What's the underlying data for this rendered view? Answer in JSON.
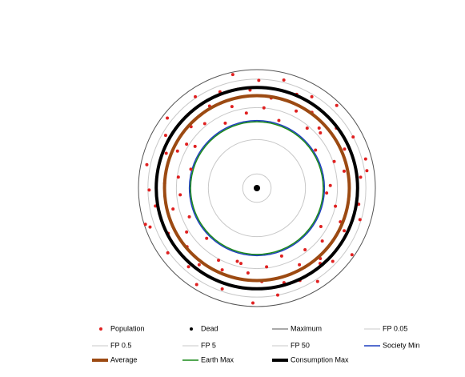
{
  "chart_data": {
    "type": "polar",
    "rlim": [
      0,
      100
    ],
    "series": [
      {
        "name": "Population",
        "kind": "scatter",
        "color": "#e02020",
        "r": [
          62,
          88,
          75,
          95,
          69,
          81,
          92,
          59,
          84,
          71,
          97,
          66,
          79,
          90,
          73,
          86,
          60,
          94,
          77,
          68,
          91,
          83,
          64,
          98,
          72,
          87,
          61,
          80,
          93,
          70,
          85,
          76,
          96,
          63,
          89,
          74,
          82,
          58,
          95,
          67,
          78,
          91,
          65,
          87,
          73,
          99,
          62,
          84,
          70,
          93,
          77,
          60,
          88,
          81,
          96,
          69,
          75,
          90,
          64,
          85,
          72,
          97,
          79,
          67,
          92,
          83,
          61,
          86,
          74,
          94,
          66,
          80,
          89,
          71,
          98,
          63,
          82,
          76,
          91,
          68,
          87,
          59,
          94,
          73,
          85,
          70,
          96,
          65,
          83,
          78
        ],
        "theta": [
          2,
          6,
          11,
          15,
          19,
          24,
          28,
          33,
          37,
          41,
          46,
          50,
          54,
          59,
          63,
          67,
          72,
          76,
          81,
          85,
          89,
          94,
          98,
          102,
          107,
          111,
          116,
          120,
          124,
          129,
          133,
          137,
          142,
          146,
          150,
          155,
          159,
          164,
          168,
          172,
          177,
          181,
          185,
          190,
          194,
          198,
          203,
          207,
          212,
          216,
          220,
          225,
          229,
          233,
          238,
          242,
          247,
          251,
          255,
          260,
          264,
          268,
          273,
          277,
          281,
          286,
          290,
          295,
          299,
          303,
          308,
          312,
          316,
          321,
          325,
          329,
          334,
          338,
          343,
          347,
          351,
          356,
          9,
          44,
          101,
          148,
          200,
          258,
          310,
          353
        ]
      },
      {
        "name": "Dead",
        "kind": "scatter",
        "color": "#000000",
        "r": [
          0
        ],
        "theta": [
          0
        ]
      },
      {
        "name": "Maximum",
        "kind": "ring",
        "color": "#555555",
        "line_width": 1,
        "value": 100
      },
      {
        "name": "FP 0.05",
        "kind": "ring",
        "color": "#c8c8c8",
        "line_width": 1,
        "value": 12
      },
      {
        "name": "FP 0.5",
        "kind": "ring",
        "color": "#c8c8c8",
        "line_width": 1,
        "value": 41
      },
      {
        "name": "FP 5",
        "kind": "ring",
        "color": "#c8c8c8",
        "line_width": 1,
        "value": 68
      },
      {
        "name": "FP 50",
        "kind": "ring",
        "color": "#c8c8c8",
        "line_width": 1,
        "value": 92
      },
      {
        "name": "Society Min",
        "kind": "ring",
        "color": "#1f3fbf",
        "line_width": 1.5,
        "value": 57
      },
      {
        "name": "Average",
        "kind": "ring",
        "color": "#9c4a12",
        "line_width": 4,
        "value": 78
      },
      {
        "name": "Earth Max",
        "kind": "ring",
        "color": "#1a8a1a",
        "line_width": 1.5,
        "value": 56
      },
      {
        "name": "Consumption Max",
        "kind": "ring",
        "color": "#000000",
        "line_width": 4,
        "value": 85
      }
    ]
  }
}
